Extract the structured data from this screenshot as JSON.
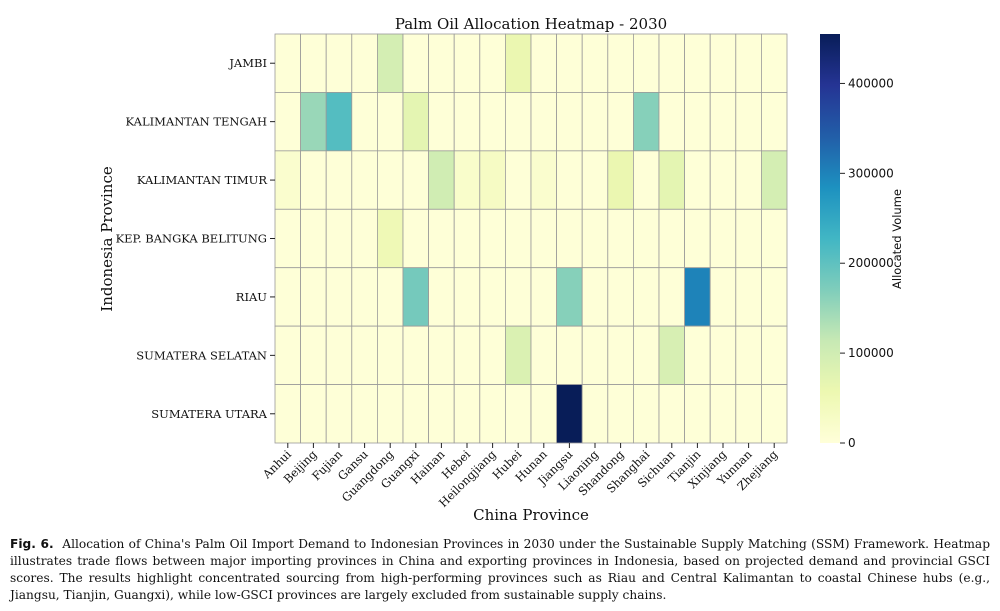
{
  "chart_data": {
    "type": "heatmap",
    "title": "Palm Oil Allocation Heatmap - 2030",
    "xlabel": "China Province",
    "ylabel": "Indonesia Province",
    "colorbar_label": "Allocated Volume",
    "colorbar_ticks": [
      "0",
      "100000",
      "200000",
      "300000",
      "400000"
    ],
    "colorbar_tick_values": [
      0,
      100000,
      200000,
      300000,
      400000
    ],
    "value_range": [
      0,
      455000
    ],
    "colormap": "YlGnBu",
    "x_categories": [
      "Anhui",
      "Beijing",
      "Fujian",
      "Gansu",
      "Guangdong",
      "Guangxi",
      "Hainan",
      "Hebei",
      "Heilongjiang",
      "Hubei",
      "Hunan",
      "Jiangsu",
      "Liaoning",
      "Shandong",
      "Shanghai",
      "Sichuan",
      "Tianjin",
      "Xinjiang",
      "Yunnan",
      "Zhejiang"
    ],
    "y_categories": [
      "JAMBI",
      "KALIMANTAN TENGAH",
      "KALIMANTAN TIMUR",
      "KEP. BANGKA BELITUNG",
      "RIAU",
      "SUMATERA SELATAN",
      "SUMATERA UTARA"
    ],
    "values": [
      [
        3000,
        3000,
        3000,
        3000,
        95000,
        3000,
        3000,
        3000,
        3000,
        60000,
        3000,
        3000,
        3000,
        3000,
        3000,
        3000,
        3000,
        3000,
        3000,
        3000
      ],
      [
        3000,
        150000,
        210000,
        3000,
        3000,
        70000,
        3000,
        3000,
        3000,
        3000,
        3000,
        3000,
        3000,
        3000,
        165000,
        3000,
        3000,
        3000,
        3000,
        3000
      ],
      [
        15000,
        3000,
        3000,
        3000,
        3000,
        3000,
        100000,
        20000,
        30000,
        3000,
        15000,
        3000,
        3000,
        60000,
        3000,
        70000,
        3000,
        3000,
        3000,
        95000
      ],
      [
        3000,
        3000,
        3000,
        3000,
        50000,
        3000,
        3000,
        3000,
        3000,
        3000,
        3000,
        3000,
        3000,
        3000,
        3000,
        3000,
        3000,
        3000,
        3000,
        3000
      ],
      [
        3000,
        3000,
        3000,
        3000,
        3000,
        180000,
        3000,
        3000,
        3000,
        3000,
        3000,
        165000,
        3000,
        3000,
        3000,
        3000,
        300000,
        3000,
        3000,
        3000
      ],
      [
        3000,
        3000,
        3000,
        3000,
        3000,
        3000,
        3000,
        3000,
        3000,
        85000,
        3000,
        3000,
        3000,
        3000,
        3000,
        90000,
        3000,
        3000,
        3000,
        3000
      ],
      [
        3000,
        3000,
        3000,
        3000,
        3000,
        3000,
        3000,
        3000,
        3000,
        3000,
        3000,
        455000,
        3000,
        3000,
        3000,
        3000,
        3000,
        3000,
        3000,
        3000
      ]
    ]
  },
  "caption": {
    "label": "Fig. 6.",
    "text": "Allocation of China's Palm Oil Import Demand to Indonesian Provinces in 2030 under the Sustainable Supply Matching (SSM) Framework. Heatmap illustrates trade flows between major importing provinces in China and exporting provinces in Indonesia, based on projected demand and provincial GSCI scores. The results highlight concentrated sourcing from high-performing provinces such as Riau and Central Kalimantan to coastal Chinese hubs (e.g., Jiangsu, Tianjin, Guangxi), while low-GSCI provinces are largely excluded from sustainable supply chains."
  }
}
